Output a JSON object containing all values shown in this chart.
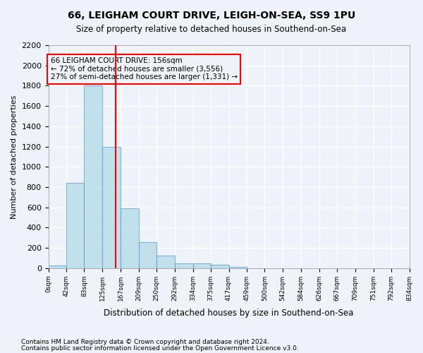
{
  "title": "66, LEIGHAM COURT DRIVE, LEIGH-ON-SEA, SS9 1PU",
  "subtitle": "Size of property relative to detached houses in Southend-on-Sea",
  "xlabel": "Distribution of detached houses by size in Southend-on-Sea",
  "ylabel": "Number of detached properties",
  "footer_line1": "Contains HM Land Registry data © Crown copyright and database right 2024.",
  "footer_line2": "Contains public sector information licensed under the Open Government Licence v3.0.",
  "bin_edges": [
    0,
    42,
    83,
    125,
    167,
    209,
    250,
    292,
    334,
    375,
    417,
    459,
    500,
    542,
    584,
    626,
    667,
    709,
    751,
    792,
    834
  ],
  "bar_heights": [
    25,
    840,
    1800,
    1200,
    590,
    255,
    125,
    45,
    45,
    30,
    15,
    0,
    0,
    0,
    0,
    0,
    0,
    0,
    0,
    0
  ],
  "bar_color": "#add8e6",
  "bar_edgecolor": "#5b9bd5",
  "bar_alpha": 0.7,
  "vline_x": 156,
  "vline_color": "red",
  "ylim": [
    0,
    2200
  ],
  "yticks": [
    0,
    200,
    400,
    600,
    800,
    1000,
    1200,
    1400,
    1600,
    1800,
    2000,
    2200
  ],
  "annotation_text": "66 LEIGHAM COURT DRIVE: 156sqm\n← 72% of detached houses are smaller (3,556)\n27% of semi-detached houses are larger (1,331) →",
  "annotation_box_color": "red",
  "bg_color": "#eef3fa",
  "grid_color": "white",
  "tick_labels": [
    "0sqm",
    "42sqm",
    "83sqm",
    "125sqm",
    "167sqm",
    "209sqm",
    "250sqm",
    "292sqm",
    "334sqm",
    "375sqm",
    "417sqm",
    "459sqm",
    "500sqm",
    "542sqm",
    "584sqm",
    "626sqm",
    "667sqm",
    "709sqm",
    "751sqm",
    "792sqm",
    "834sqm"
  ]
}
